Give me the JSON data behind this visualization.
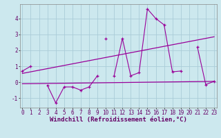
{
  "xlabel": "Windchill (Refroidissement éolien,°C)",
  "background_color": "#cce8ee",
  "grid_color": "#aaccd8",
  "line_color": "#990099",
  "x": [
    0,
    1,
    2,
    3,
    4,
    5,
    6,
    7,
    8,
    9,
    10,
    11,
    12,
    13,
    14,
    15,
    16,
    17,
    18,
    19,
    20,
    21,
    22,
    23
  ],
  "series1": [
    0.7,
    1.0,
    null,
    -0.2,
    -1.3,
    -0.3,
    -0.3,
    -0.5,
    -0.3,
    0.4,
    null,
    0.4,
    2.75,
    0.4,
    0.6,
    4.6,
    4.0,
    3.6,
    0.65,
    0.7,
    null,
    2.2,
    -0.15,
    0.05
  ],
  "isolated_x": [
    10
  ],
  "isolated_y": [
    2.75
  ],
  "trend1_x": [
    0,
    23
  ],
  "trend1_y": [
    -0.1,
    0.05
  ],
  "trend2_x": [
    0,
    23
  ],
  "trend2_y": [
    0.55,
    2.85
  ],
  "xlim": [
    -0.3,
    23.3
  ],
  "ylim": [
    -1.6,
    4.9
  ],
  "yticks": [
    -1,
    0,
    1,
    2,
    3,
    4
  ],
  "xticks": [
    0,
    1,
    2,
    3,
    4,
    5,
    6,
    7,
    8,
    9,
    10,
    11,
    12,
    13,
    14,
    15,
    16,
    17,
    18,
    19,
    20,
    21,
    22,
    23
  ],
  "tick_fontsize": 5.5,
  "xlabel_fontsize": 6.5
}
